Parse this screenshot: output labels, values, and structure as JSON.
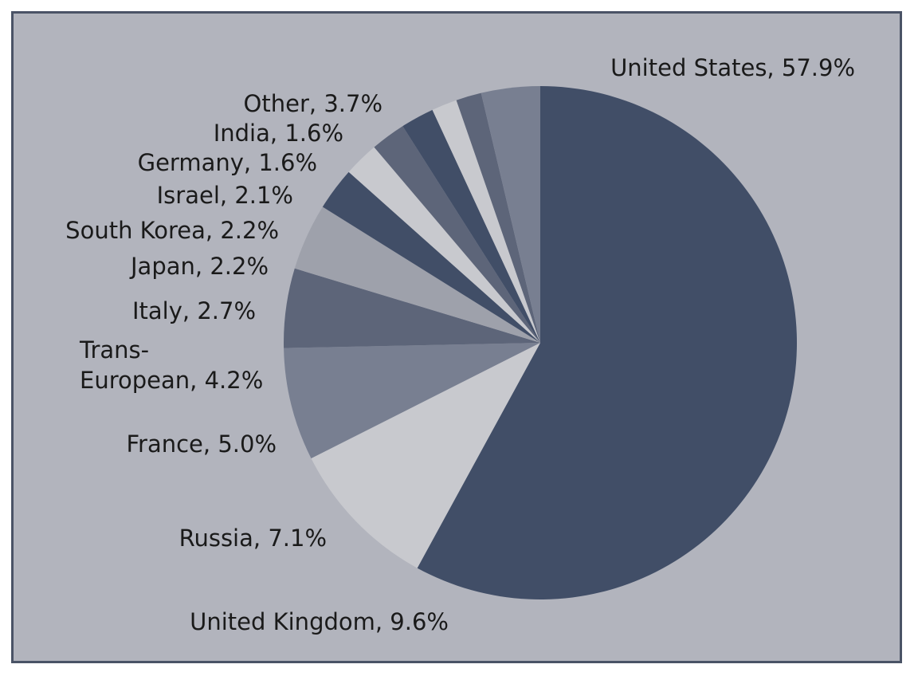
{
  "chart_data": {
    "type": "pie",
    "start": "12 o'clock, clockwise",
    "slices": [
      {
        "label": "United States, 57.9%",
        "name": "United States",
        "value": 57.9,
        "color": "#414e67"
      },
      {
        "label": "United Kingdom, 9.6%",
        "name": "United Kingdom",
        "value": 9.6,
        "color": "#c8c9ce"
      },
      {
        "label": "Russia, 7.1%",
        "name": "Russia",
        "value": 7.1,
        "color": "#787f91"
      },
      {
        "label": "France, 5.0%",
        "name": "France",
        "value": 5.0,
        "color": "#5d6579"
      },
      {
        "label": [
          "Trans-",
          "European, 4.2%"
        ],
        "name": "Trans-European",
        "value": 4.2,
        "color": "#9ea1ab"
      },
      {
        "label": "Italy, 2.7%",
        "name": "Italy",
        "value": 2.7,
        "color": "#414e67"
      },
      {
        "label": "Japan, 2.2%",
        "name": "Japan",
        "value": 2.2,
        "color": "#c8c9ce"
      },
      {
        "label": "South Korea, 2.2%",
        "name": "South Korea",
        "value": 2.2,
        "color": "#5d6579"
      },
      {
        "label": "Israel, 2.1%",
        "name": "Israel",
        "value": 2.1,
        "color": "#414e67"
      },
      {
        "label": "Germany, 1.6%",
        "name": "Germany",
        "value": 1.6,
        "color": "#c8c9ce"
      },
      {
        "label": "India, 1.6%",
        "name": "India",
        "value": 1.6,
        "color": "#5d6579"
      },
      {
        "label": "Other, 3.7%",
        "name": "Other",
        "value": 3.7,
        "color": "#787f91"
      }
    ],
    "background_color": "#b2b4bd",
    "frame_color": "#4a5366"
  }
}
